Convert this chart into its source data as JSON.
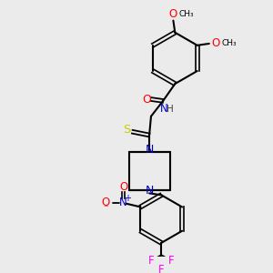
{
  "bg_color": "#ebebeb",
  "bond_color": "#000000",
  "colors": {
    "O": "#ff0000",
    "N": "#0000cc",
    "S": "#cccc00",
    "F": "#ff00ff",
    "H": "#404040",
    "C": "#000000"
  }
}
